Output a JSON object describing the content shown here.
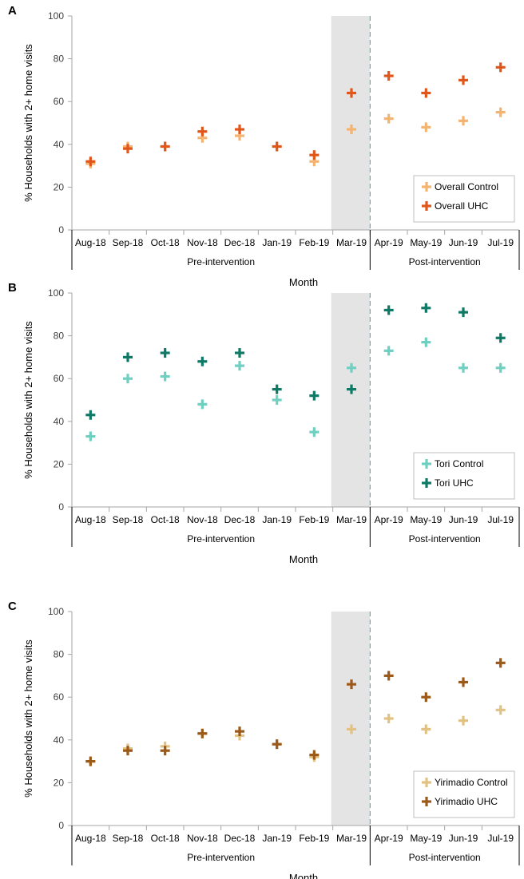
{
  "chart_data": [
    {
      "type": "scatter",
      "panel_label": "A",
      "ylabel": "% Households  with 2+ home visits",
      "xlabel": "Month",
      "categories": [
        "Aug-18",
        "Sep-18",
        "Oct-18",
        "Nov-18",
        "Dec-18",
        "Jan-19",
        "Feb-19",
        "Mar-19",
        "Apr-19",
        "May-19",
        "Jun-19",
        "Jul-19"
      ],
      "period_labels": [
        "Pre-intervention",
        "Post-intervention"
      ],
      "shaded_category": "Mar-19",
      "intervention_divider": "between Mar-19 and Apr-19",
      "ylim": [
        0,
        100
      ],
      "yticks": [
        0,
        20,
        40,
        60,
        80,
        100
      ],
      "grid": false,
      "legend_position": "bottom-right",
      "series": [
        {
          "name": "Overall Control",
          "color": "#f5b370",
          "values": [
            31,
            39,
            39,
            43,
            44,
            39,
            32,
            47,
            52,
            48,
            51,
            55
          ]
        },
        {
          "name": "Overall UHC",
          "color": "#e0561b",
          "values": [
            32,
            38,
            39,
            46,
            47,
            39,
            35,
            64,
            72,
            64,
            70,
            76
          ]
        }
      ]
    },
    {
      "type": "scatter",
      "panel_label": "B",
      "ylabel": "% Households  with 2+ home visits",
      "xlabel": "Month",
      "categories": [
        "Aug-18",
        "Sep-18",
        "Oct-18",
        "Nov-18",
        "Dec-18",
        "Jan-19",
        "Feb-19",
        "Mar-19",
        "Apr-19",
        "May-19",
        "Jun-19",
        "Jul-19"
      ],
      "period_labels": [
        "Pre-intervention",
        "Post-intervention"
      ],
      "shaded_category": "Mar-19",
      "intervention_divider": "between Mar-19 and Apr-19",
      "ylim": [
        0,
        100
      ],
      "yticks": [
        0,
        20,
        40,
        60,
        80,
        100
      ],
      "grid": false,
      "legend_position": "bottom-right",
      "series": [
        {
          "name": "Tori Control",
          "color": "#6fcfc0",
          "values": [
            33,
            60,
            61,
            48,
            66,
            50,
            35,
            65,
            73,
            77,
            65,
            65
          ]
        },
        {
          "name": "Tori UHC",
          "color": "#0e7a66",
          "values": [
            43,
            70,
            72,
            68,
            72,
            55,
            52,
            55,
            92,
            93,
            91,
            79
          ]
        }
      ]
    },
    {
      "type": "scatter",
      "panel_label": "C",
      "ylabel": "% Households  with 2+ home visits",
      "xlabel": "Month",
      "categories": [
        "Aug-18",
        "Sep-18",
        "Oct-18",
        "Nov-18",
        "Dec-18",
        "Jan-19",
        "Feb-19",
        "Mar-19",
        "Apr-19",
        "May-19",
        "Jun-19",
        "Jul-19"
      ],
      "period_labels": [
        "Pre-intervention",
        "Post-intervention"
      ],
      "shaded_category": "Mar-19",
      "intervention_divider": "between Mar-19 and Apr-19",
      "ylim": [
        0,
        100
      ],
      "yticks": [
        0,
        20,
        40,
        60,
        80,
        100
      ],
      "grid": false,
      "legend_position": "bottom-right",
      "series": [
        {
          "name": "Yirimadio Control",
          "color": "#e2c283",
          "values": [
            30,
            36,
            37,
            43,
            42,
            38,
            32,
            45,
            50,
            45,
            49,
            54
          ]
        },
        {
          "name": "Yirimadio UHC",
          "color": "#9b5a19",
          "values": [
            30,
            35,
            35,
            43,
            44,
            38,
            33,
            66,
            70,
            60,
            67,
            76
          ]
        }
      ]
    }
  ]
}
